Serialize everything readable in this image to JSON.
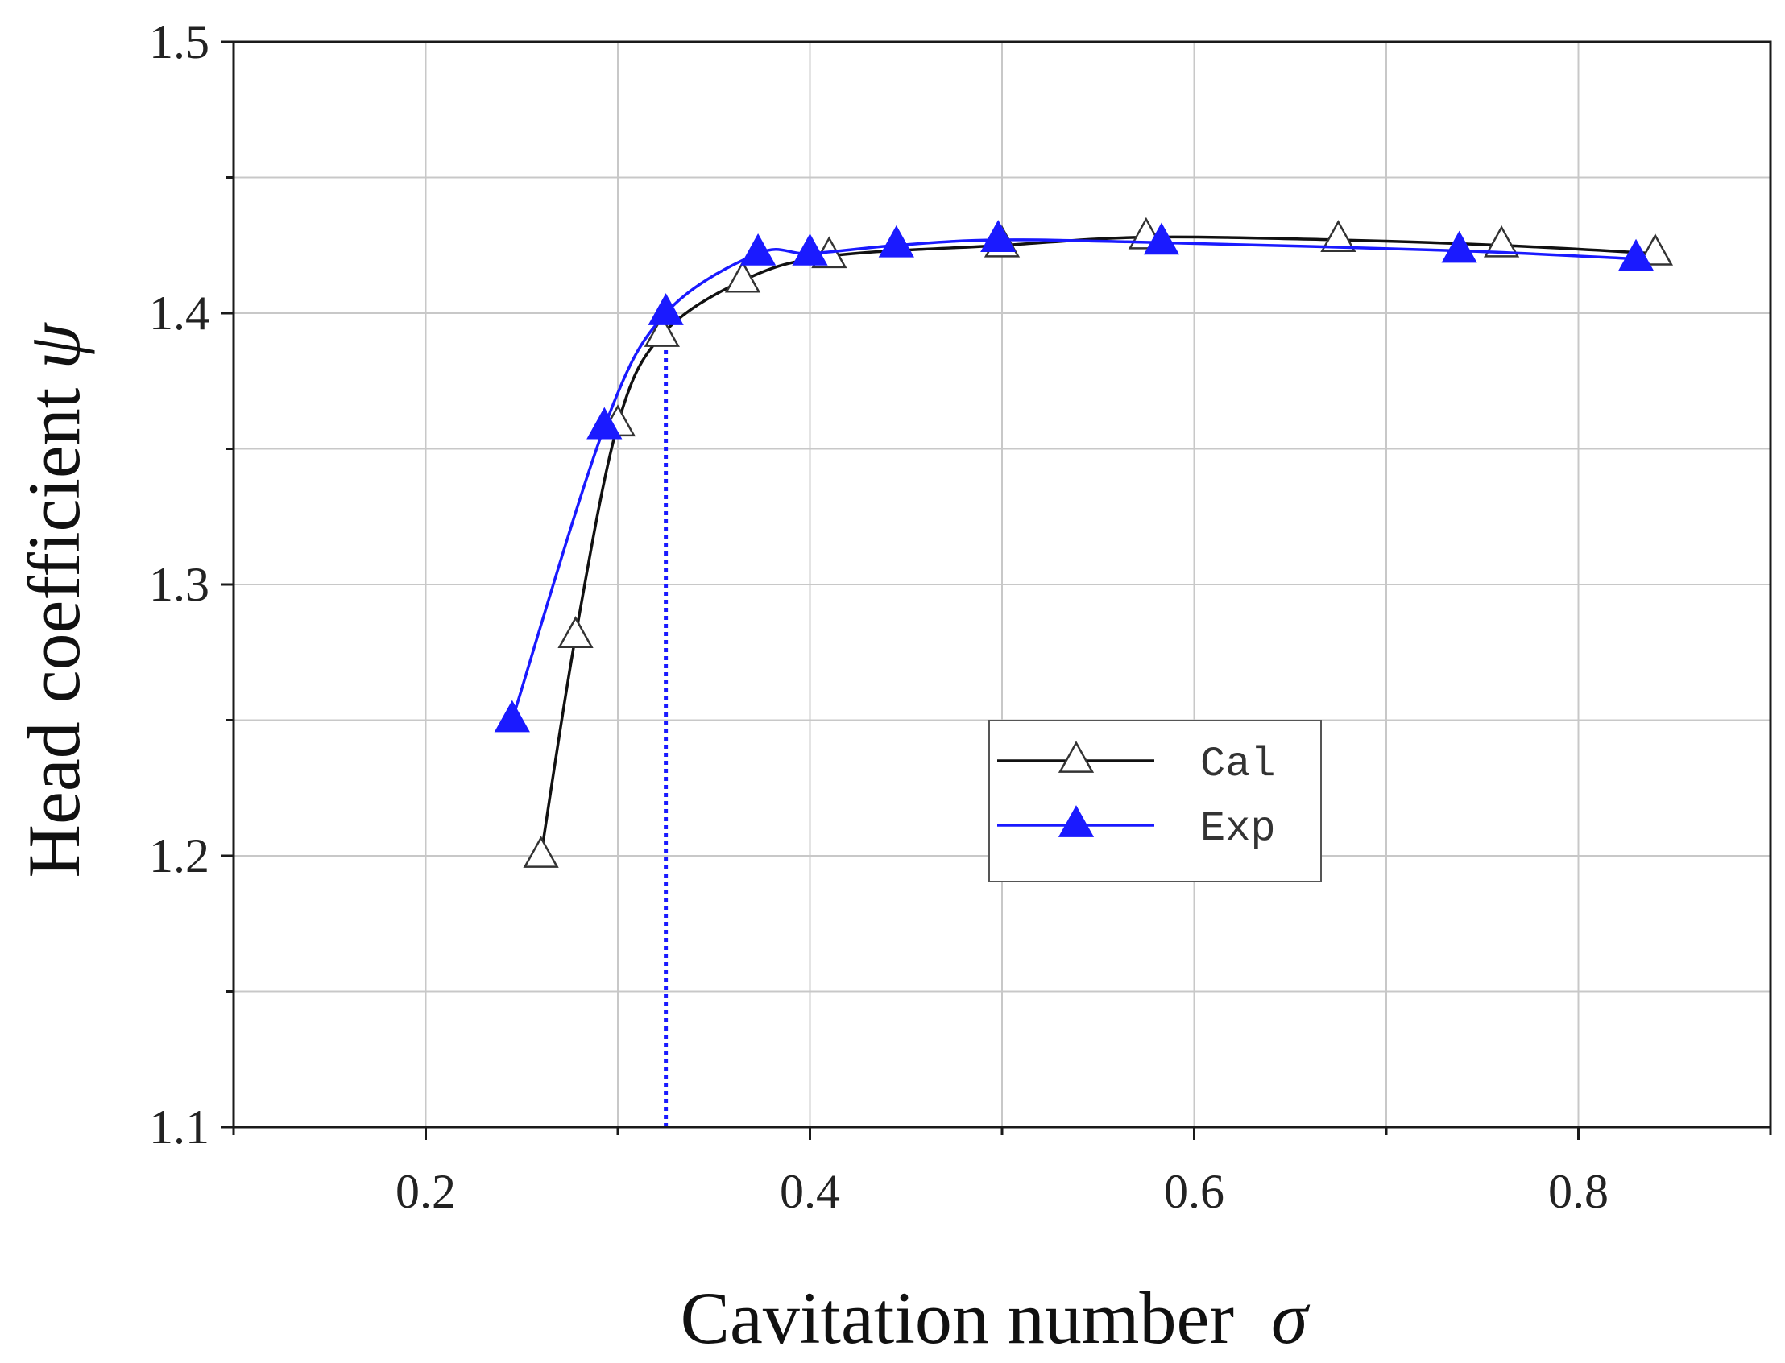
{
  "chart_data": {
    "type": "line",
    "title": "",
    "xlabel": "Cavitation number",
    "xlabel_symbol": "σ",
    "ylabel": "Head coefficient",
    "ylabel_symbol": "ψ",
    "xlim": [
      0.1,
      0.9
    ],
    "ylim": [
      1.1,
      1.5
    ],
    "xticks": [
      0.2,
      0.4,
      0.6,
      0.8
    ],
    "xtick_labels": [
      "0.2",
      "0.4",
      "0.6",
      "0.8"
    ],
    "yticks": [
      1.1,
      1.2,
      1.3,
      1.4,
      1.5
    ],
    "ytick_labels": [
      "1.1",
      "1.2",
      "1.3",
      "1.4",
      "1.5"
    ],
    "x_minor_ticks": [
      0.1,
      0.3,
      0.5,
      0.7,
      0.9
    ],
    "y_minor_ticks": [
      1.15,
      1.25,
      1.35,
      1.45
    ],
    "grid": true,
    "legend_position": "lower-center",
    "reference_line": {
      "x": 0.325,
      "style": "dotted",
      "color": "#1a1aff"
    },
    "series": [
      {
        "name": "Cal",
        "marker": "open-triangle",
        "color": "#111111",
        "x": [
          0.26,
          0.278,
          0.3,
          0.323,
          0.365,
          0.41,
          0.5,
          0.575,
          0.675,
          0.76,
          0.84
        ],
        "y": [
          1.2,
          1.281,
          1.359,
          1.392,
          1.412,
          1.421,
          1.425,
          1.428,
          1.427,
          1.425,
          1.422
        ]
      },
      {
        "name": "Exp",
        "marker": "filled-triangle",
        "color": "#1a1aff",
        "x": [
          0.245,
          0.293,
          0.325,
          0.373,
          0.4,
          0.445,
          0.498,
          0.583,
          0.738,
          0.83
        ],
        "y": [
          1.25,
          1.358,
          1.4,
          1.422,
          1.422,
          1.425,
          1.427,
          1.426,
          1.423,
          1.42
        ]
      }
    ]
  }
}
